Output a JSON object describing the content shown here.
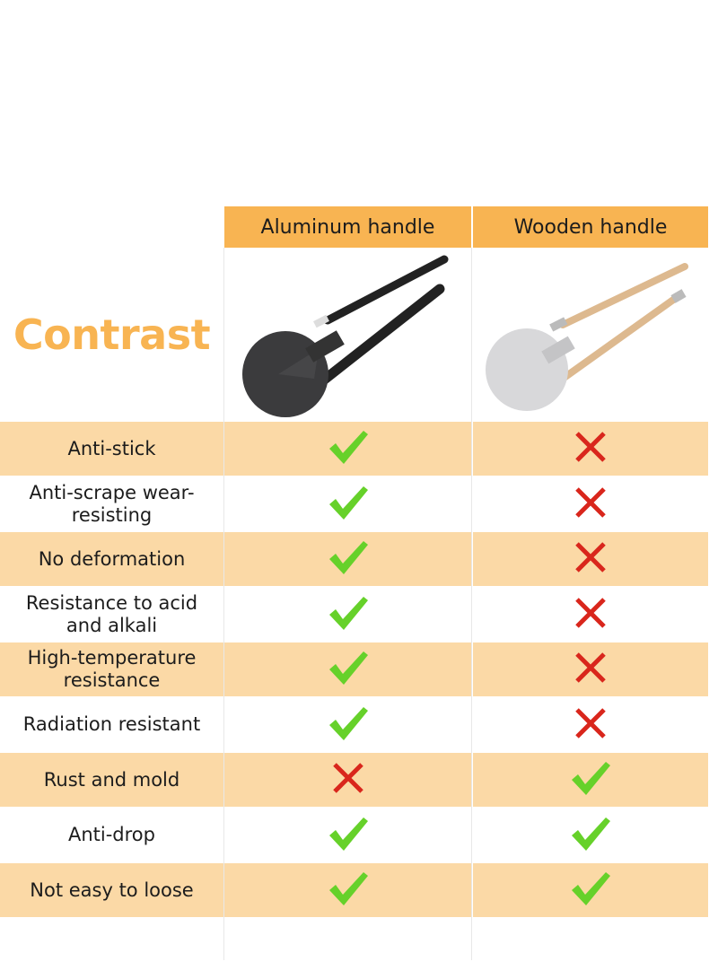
{
  "title": "Contrast",
  "columns": [
    "Aluminum handle",
    "Wooden handle"
  ],
  "colors": {
    "header": "#F8B452",
    "row_shade": "#FBD9A6",
    "check": "#66D12A",
    "cross": "#D9261C",
    "title": "#F8B452"
  },
  "images": [
    {
      "name": "aluminum-handle-pizza-peel"
    },
    {
      "name": "wooden-handle-pizza-peel"
    }
  ],
  "rows": [
    {
      "feature": "Anti-stick",
      "aluminum": "check",
      "wooden": "cross"
    },
    {
      "feature": "Anti-scrape wear-resisting",
      "aluminum": "check",
      "wooden": "cross"
    },
    {
      "feature": "No deformation",
      "aluminum": "check",
      "wooden": "cross"
    },
    {
      "feature": "Resistance to acid and alkali",
      "aluminum": "check",
      "wooden": "cross"
    },
    {
      "feature": "High-temperature resistance",
      "aluminum": "check",
      "wooden": "cross"
    },
    {
      "feature": "Radiation resistant",
      "aluminum": "check",
      "wooden": "cross"
    },
    {
      "feature": "Rust and mold",
      "aluminum": "cross",
      "wooden": "check"
    },
    {
      "feature": "Anti-drop",
      "aluminum": "check",
      "wooden": "check"
    },
    {
      "feature": "Not easy to loose",
      "aluminum": "check",
      "wooden": "check"
    }
  ]
}
